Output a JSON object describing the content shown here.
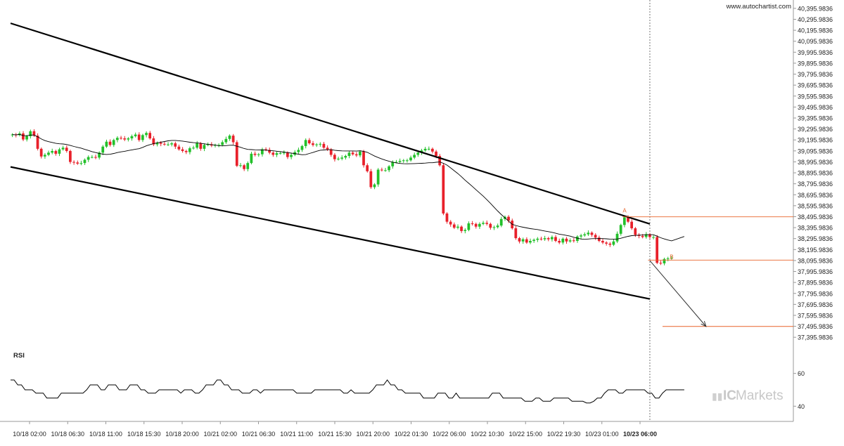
{
  "source_label": "www.autochartist.com",
  "rsi_label": "RSI",
  "brand": {
    "mark": "IC",
    "name": "Markets"
  },
  "colors": {
    "up": "#22c02a",
    "down": "#e8202a",
    "channel": "#000000",
    "ma": "#000000",
    "level": "#e8642a",
    "grid": "#cccccc",
    "text": "#222222",
    "watermark": "#c8c8c8"
  },
  "chart_data": {
    "type": "candlestick",
    "title": "",
    "price_axis": {
      "min": 37345.9836,
      "max": 40420.9836,
      "ticks": [
        "40,395.9836",
        "40,295.9836",
        "40,195.9836",
        "40,095.9836",
        "39,995.9836",
        "39,895.9836",
        "39,795.9836",
        "39,695.9836",
        "39,595.9836",
        "39,495.9836",
        "39,395.9836",
        "39,295.9836",
        "39,195.9836",
        "39,095.9836",
        "38,995.9836",
        "38,895.9836",
        "38,795.9836",
        "38,695.9836",
        "38,595.9836",
        "38,495.9836",
        "38,395.9836",
        "38,295.9836",
        "38,195.9836",
        "38,095.9836",
        "37,995.9836",
        "37,895.9836",
        "37,795.9836",
        "37,695.9836",
        "37,595.9836",
        "37,495.9836",
        "37,395.9836"
      ]
    },
    "time_axis": {
      "labels": [
        "10/18 02:00",
        "10/18 06:30",
        "10/18 11:00",
        "10/18 15:30",
        "10/18 20:00",
        "10/21 02:00",
        "10/21 06:30",
        "10/21 11:00",
        "10/21 15:30",
        "10/21 20:00",
        "10/22 01:30",
        "10/22 06:00",
        "10/22 10:30",
        "10/22 15:00",
        "10/22 19:30",
        "10/23 01:00",
        "10/23 06:00"
      ],
      "highlighted_label": "10/23 06:00",
      "total_bars": 200,
      "current_bar_index": 176
    },
    "closes": [
      39245,
      39240,
      39255,
      39200,
      39230,
      39275,
      39235,
      39115,
      39045,
      39060,
      39080,
      39095,
      39070,
      39110,
      39125,
      39095,
      38995,
      38990,
      38980,
      38985,
      39015,
      39040,
      39040,
      39035,
      39080,
      39135,
      39180,
      39150,
      39195,
      39215,
      39210,
      39200,
      39210,
      39230,
      39245,
      39195,
      39240,
      39260,
      39210,
      39155,
      39170,
      39160,
      39155,
      39155,
      39165,
      39135,
      39110,
      39095,
      39085,
      39120,
      39125,
      39165,
      39115,
      39150,
      39155,
      39145,
      39150,
      39150,
      39175,
      39205,
      39235,
      39175,
      38960,
      38965,
      38930,
      38985,
      39070,
      39060,
      39065,
      39110,
      39105,
      39080,
      39060,
      39075,
      39075,
      39080,
      39040,
      39060,
      39085,
      39105,
      39140,
      39195,
      39165,
      39150,
      39155,
      39160,
      39125,
      39110,
      39060,
      39020,
      39025,
      39035,
      39050,
      39080,
      39065,
      39055,
      39090,
      38965,
      38910,
      38765,
      38790,
      38925,
      38920,
      38920,
      38955,
      38995,
      38995,
      39005,
      39010,
      39010,
      39035,
      39060,
      39080,
      39100,
      39115,
      39115,
      39090,
      39050,
      38965,
      38525,
      38450,
      38425,
      38395,
      38405,
      38365,
      38375,
      38435,
      38430,
      38405,
      38430,
      38440,
      38430,
      38395,
      38400,
      38415,
      38475,
      38495,
      38460,
      38390,
      38300,
      38270,
      38290,
      38260,
      38275,
      38285,
      38295,
      38290,
      38300,
      38290,
      38310,
      38275,
      38260,
      38295,
      38270,
      38280,
      38275,
      38315,
      38325,
      38335,
      38350,
      38330,
      38305,
      38275,
      38260,
      38250,
      38240,
      38270,
      38340,
      38420,
      38490,
      38450,
      38390,
      38330,
      38320,
      38310,
      38335,
      38310,
      38310,
      38075,
      38070,
      38110,
      38115,
      38120
    ],
    "moving_average_end": 38315,
    "pattern": {
      "name": "",
      "upper_line": {
        "from": [
          0,
          40260
        ],
        "to": [
          176,
          38430
        ]
      },
      "lower_line": {
        "from": [
          0,
          38950
        ],
        "to": [
          176,
          37745
        ]
      },
      "breakout_level": 38100,
      "pattern_high_level": 38495,
      "target_level": 37495,
      "projection": {
        "from": [
          176,
          38095
        ],
        "to": [
          192,
          37495
        ]
      },
      "marker_A": {
        "bar": 169,
        "price": 38535,
        "text": "A"
      },
      "marker_B": {
        "bar": 182,
        "price": 38110,
        "text": "B"
      }
    },
    "rsi": {
      "ticks": [
        60,
        40
      ],
      "min": 35,
      "max": 65,
      "values": [
        56,
        56,
        53,
        53,
        50,
        50,
        50,
        48,
        48,
        48,
        45,
        45,
        45,
        45,
        48,
        48,
        48,
        48,
        48,
        48,
        48,
        50,
        53,
        53,
        53,
        50,
        50,
        53,
        53,
        53,
        50,
        50,
        50,
        53,
        53,
        53,
        50,
        50,
        48,
        48,
        48,
        50,
        50,
        50,
        50,
        50,
        50,
        48,
        50,
        50,
        50,
        48,
        48,
        50,
        53,
        53,
        53,
        56,
        56,
        53,
        53,
        50,
        50,
        50,
        48,
        48,
        48,
        50,
        50,
        48,
        50,
        50,
        50,
        50,
        50,
        50,
        50,
        50,
        50,
        48,
        48,
        48,
        48,
        48,
        50,
        50,
        50,
        50,
        50,
        50,
        50,
        50,
        48,
        48,
        50,
        48,
        48,
        48,
        48,
        48,
        50,
        53,
        53,
        53,
        56,
        53,
        53,
        50,
        50,
        48,
        48,
        48,
        48,
        48,
        45,
        45,
        45,
        45,
        48,
        48,
        48,
        45,
        45,
        48,
        45,
        45,
        45,
        45,
        45,
        45,
        45,
        45,
        45,
        48,
        48,
        48,
        45,
        45,
        45,
        45,
        45,
        45,
        43,
        43,
        43,
        45,
        45,
        43,
        43,
        43,
        45,
        45,
        45,
        45,
        45,
        43,
        43,
        43,
        43,
        42,
        42,
        43,
        45,
        45,
        48,
        50,
        50,
        50,
        48,
        48,
        50,
        50,
        50,
        50,
        50,
        50,
        48,
        48,
        45,
        45,
        48,
        50,
        50,
        50,
        50,
        50,
        50
      ]
    }
  }
}
